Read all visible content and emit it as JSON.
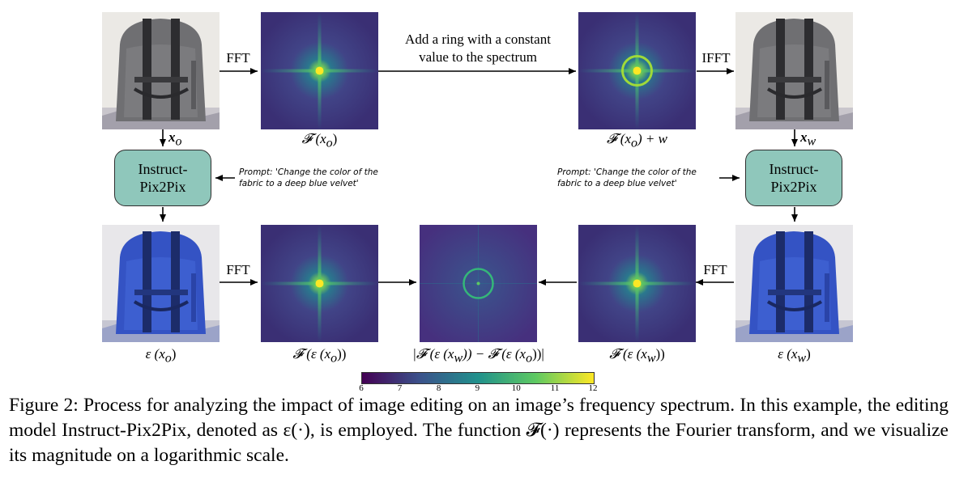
{
  "figure": {
    "top_text": [
      "Add a ring with a constant",
      "value to the spectrum"
    ],
    "fft_label": "FFT",
    "ifft_label": "IFFT",
    "box_label": [
      "Instruct-",
      "Pix2Pix"
    ],
    "prompt": [
      "Prompt: 'Change the color of the",
      "fabric to a deep blue velvet'"
    ],
    "labels": {
      "x_o": "x",
      "x_o_sub": "o",
      "x_w": "x",
      "x_w_sub": "w",
      "f_xo": "𝓕 (x",
      "f_xo_sub": "o",
      "f_xo_end": ")",
      "f_xo_w": "𝓕 (x",
      "f_xo_w_sub": "o",
      "f_xo_w_end": ") + w",
      "eps_xo": "ε (x",
      "eps_xo_sub": "o",
      "eps_xo_end": ")",
      "eps_xw": "ε (x",
      "eps_xw_sub": "w",
      "eps_xw_end": ")",
      "f_eps_xo": "𝓕 (ε (x",
      "f_eps_xo_sub": "o",
      "f_eps_xo_end": "))",
      "f_eps_xw": "𝓕 (ε (x",
      "f_eps_xw_sub": "w",
      "f_eps_xw_end": "))",
      "diff_a": "|𝓕 (ε (x",
      "diff_a_sub": "w",
      "diff_b": ")) − 𝓕 (ε (x",
      "diff_b_sub": "o",
      "diff_end": "))|"
    },
    "colorbar": {
      "ticks": [
        "6",
        "7",
        "8",
        "9",
        "10",
        "11",
        "12"
      ],
      "colors": [
        "#440154",
        "#3b528b",
        "#21918c",
        "#5ec962",
        "#fde725"
      ]
    },
    "colors": {
      "box_fill": "#8fc7bb",
      "gray_bag": "#6f6f72",
      "blue_bag": "#3453c4",
      "spectrum_bg": "#3a2f74",
      "spectrum_core": "#f4e33a"
    }
  },
  "caption": "Figure 2: Process for analyzing the impact of image editing on an image’s frequency spectrum. In this example, the editing model Instruct-Pix2Pix, denoted as ε(·), is employed. The function 𝓕(·) represents the Fourier transform, and we visualize its magnitude on a logarithmic scale."
}
